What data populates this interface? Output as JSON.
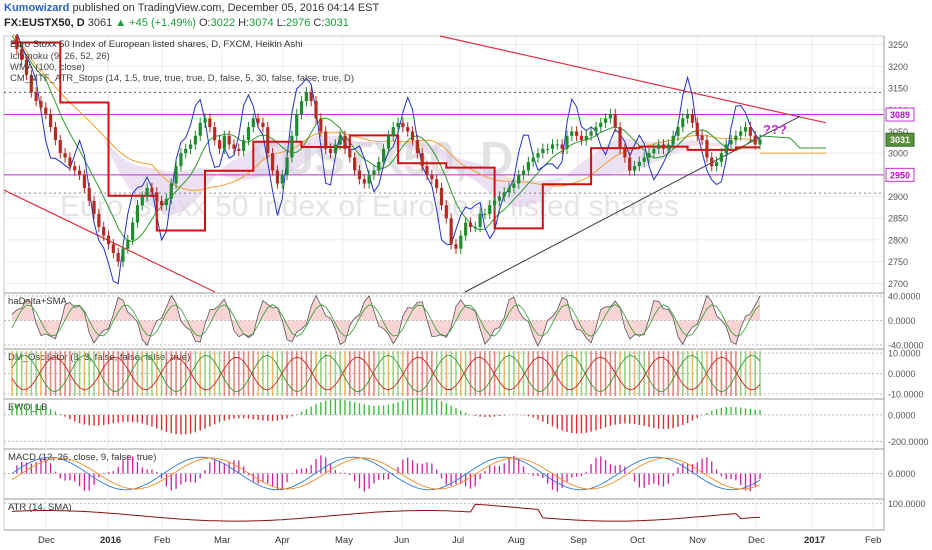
{
  "header": {
    "author": "Kumowizard",
    "published_text": "published on TradingView.com, December 05, 2016 04:14 EST",
    "symbol": "FX:EUSTX50, D",
    "last": "3061",
    "change": "+45 (+1.49%)",
    "o_label": "O:",
    "o_value": "3022",
    "h_label": "H:",
    "h_value": "3074",
    "l_label": "L:",
    "l_value": "2976",
    "c_label": "C:",
    "c_value": "3031"
  },
  "colors": {
    "candle_up": "#1e8c2e",
    "candle_down": "#b52a22",
    "line_red": "#d01010",
    "line_blue": "#2230c8",
    "line_orange": "#f0a030",
    "line_green": "#2f9a2f",
    "cloud_fill": "#dcc8e8",
    "magenta": "#c030d0",
    "trend_red": "#e03040",
    "trend_dark": "#3a3a3a"
  },
  "chart_data": [
    {
      "type": "candlestick",
      "title": "Euro Stoxx 50 Index of European listed shares, D, FXCM, Heikin Ashi",
      "watermark_top": "EUSTX50, D",
      "watermark_bottom": "Euro Stoxx 50 Index of European listed shares",
      "indicators": [
        "Ichimoku (9, 26, 52, 26)",
        "WMA (100, close)",
        "CM_MTF_ATR_Stops (14, 1.5, true, true, true, D, false, 5, 30, false, false, true, D)"
      ],
      "annotation": "???",
      "x_labels": [
        "Dec",
        "2016",
        "Feb",
        "Mar",
        "Apr",
        "May",
        "Jun",
        "Jul",
        "Aug",
        "Sep",
        "Oct",
        "Nov",
        "Dec",
        "2017",
        "Feb"
      ],
      "y_ticks": [
        3250,
        3200,
        3150,
        3100,
        3050,
        3000,
        2950,
        2900,
        2850,
        2800,
        2750,
        2700
      ],
      "ylim": [
        2680,
        3270
      ],
      "price_tags": [
        3089,
        3031,
        2950
      ],
      "series_close": [
        3270,
        3240,
        3215,
        3180,
        3140,
        3120,
        3105,
        3090,
        3060,
        3030,
        3000,
        2990,
        2970,
        2960,
        2950,
        2920,
        2890,
        2860,
        2830,
        2810,
        2790,
        2770,
        2750,
        2780,
        2800,
        2840,
        2880,
        2900,
        2920,
        2910,
        2890,
        2880,
        2895,
        2930,
        2970,
        3000,
        3010,
        3020,
        3040,
        3070,
        3080,
        3060,
        3030,
        3010,
        3040,
        3020,
        3010,
        3005,
        3030,
        3060,
        3080,
        3070,
        3060,
        3000,
        2960,
        2930,
        2950,
        2990,
        3040,
        3090,
        3120,
        3140,
        3120,
        3080,
        3050,
        3010,
        3000,
        3020,
        3040,
        3010,
        2990,
        2960,
        2940,
        2930,
        2950,
        2960,
        2980,
        3010,
        3040,
        3060,
        3070,
        3060,
        3050,
        3030,
        3000,
        2970,
        2950,
        2940,
        2920,
        2880,
        2850,
        2790,
        2780,
        2810,
        2840,
        2830,
        2830,
        2860,
        2860,
        2880,
        2890,
        2900,
        2910,
        2920,
        2930,
        2950,
        2960,
        2980,
        2990,
        3000,
        3010,
        3010,
        3020,
        3020,
        3010,
        3040,
        3050,
        3040,
        3030,
        3040,
        3050,
        3060,
        3070,
        3080,
        3090,
        3060,
        3010,
        2990,
        2960,
        2970,
        2980,
        2990,
        3000,
        3010,
        3020,
        3010,
        3020,
        3040,
        3060,
        3080,
        3090,
        3070,
        3040,
        3030,
        2990,
        2970,
        2980,
        3000,
        3020,
        3030,
        3040,
        3050,
        3060,
        3040,
        3020,
        3031
      ],
      "title_font_note": "",
      "panels": [
        {
          "name": "haDelta+SMA",
          "ticks": [
            "40.0000",
            "0.0000",
            "-40.0000"
          ],
          "ylim": [
            -45,
            45
          ]
        },
        {
          "name": "DM_Oscillator (3, 3, false, false, false, true)",
          "ticks": [
            "10.0000",
            "0.0000",
            "-10.0000"
          ],
          "ylim": [
            -12,
            12
          ]
        },
        {
          "name": "EWO_LB",
          "ticks": [
            "0.0000",
            "-200.0000"
          ],
          "ylim": [
            -250,
            120
          ]
        },
        {
          "name": "MACD (12, 26, close, 9, false, true)",
          "ticks": [
            "0.0000"
          ],
          "ylim": [
            -60,
            60
          ]
        },
        {
          "name": "ATR (14, SMA)",
          "ticks": [
            "100.0000"
          ],
          "ylim": [
            40,
            110
          ]
        }
      ]
    }
  ]
}
